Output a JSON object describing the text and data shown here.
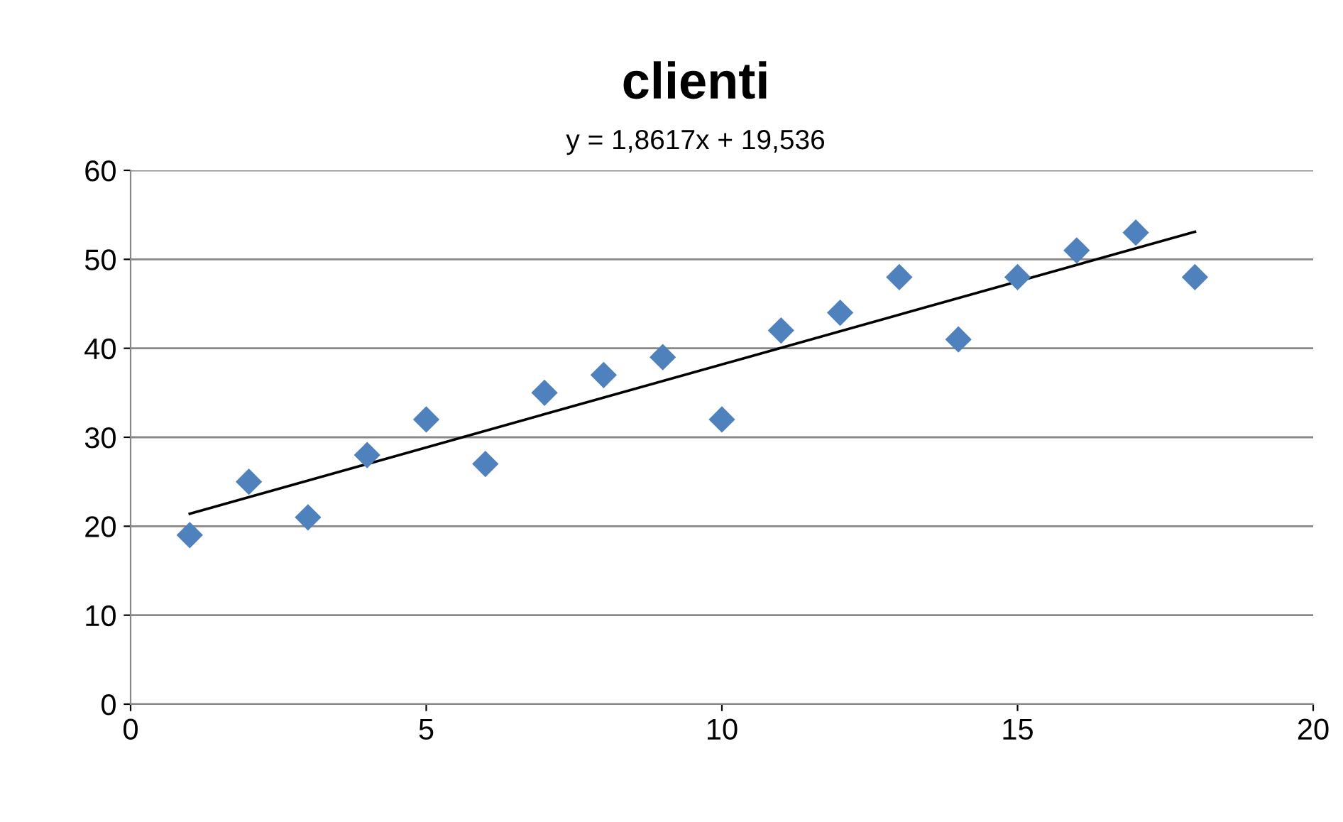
{
  "chart_data": {
    "type": "scatter",
    "title": "clienti",
    "annotations": [
      "y = 1,8617x + 19,536"
    ],
    "x": [
      1,
      2,
      3,
      4,
      5,
      6,
      7,
      8,
      9,
      10,
      11,
      12,
      13,
      14,
      15,
      16,
      17,
      18
    ],
    "series": [
      {
        "color": "#4f81bd",
        "marker": "diamond",
        "values": [
          19,
          25,
          21,
          28,
          32,
          27,
          35,
          37,
          39,
          32,
          42,
          44,
          48,
          41,
          48,
          51,
          53,
          48
        ]
      },
      {
        "type": "line",
        "color": "#000000",
        "marker": "none",
        "line_style": "solid",
        "x": [
          1,
          18
        ],
        "values": [
          21.4,
          53.1
        ]
      }
    ],
    "xlim": [
      0,
      20
    ],
    "xticks": [
      0,
      5,
      10,
      15,
      20
    ],
    "ylim": [
      0,
      60
    ],
    "yticks": [
      0,
      10,
      20,
      30,
      40,
      50,
      60
    ],
    "grid": "y",
    "legend": false
  }
}
